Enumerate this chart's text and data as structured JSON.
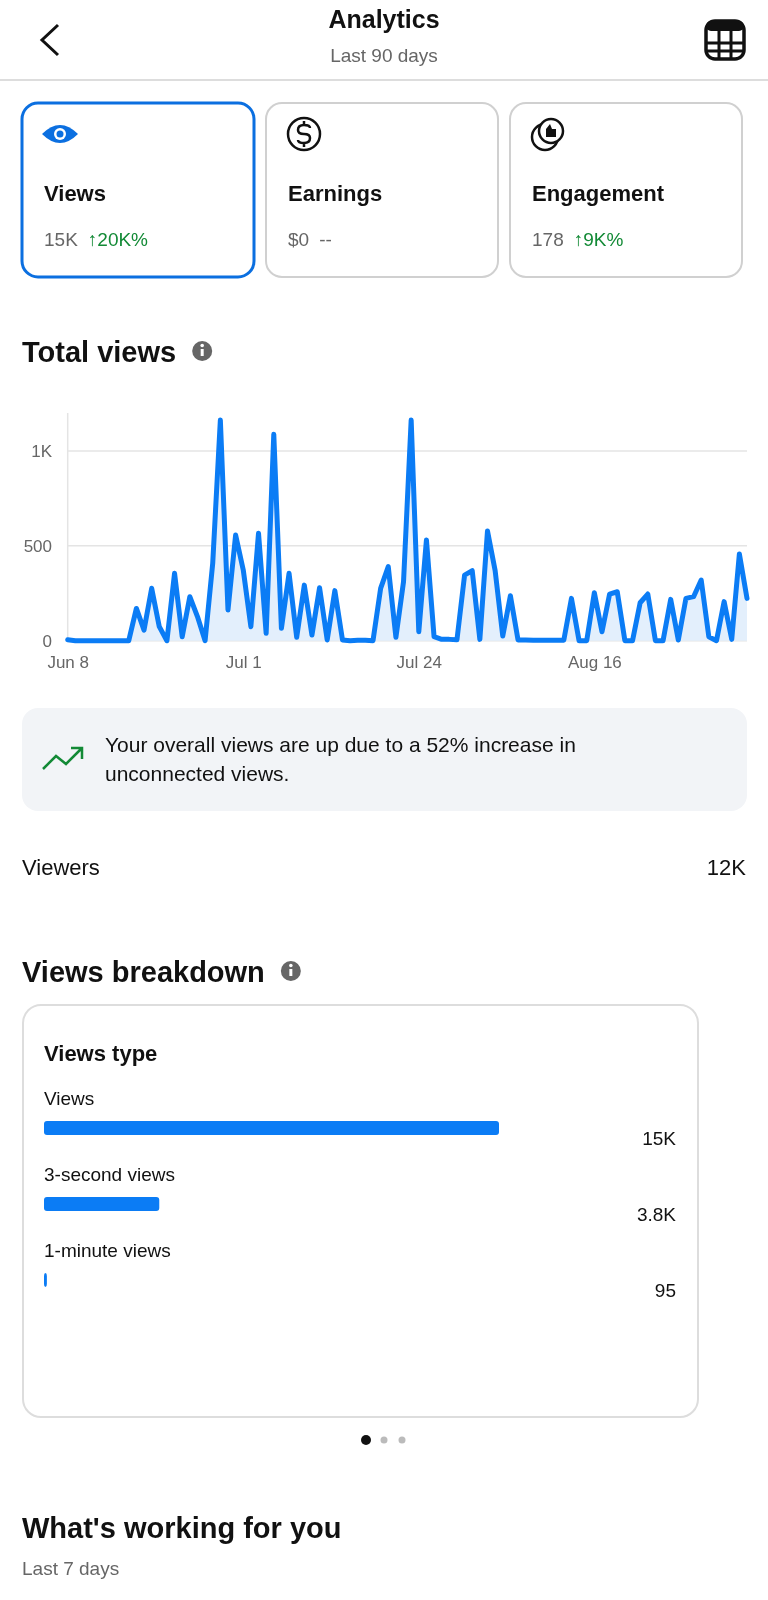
{
  "chart_data": [
    {
      "type": "other",
      "title": "Analytics",
      "subtitle": "Last 90 days",
      "annotations": [
        "Views",
        "15K",
        "↑20K%",
        "Earnings",
        "$0",
        "--",
        "Engagement",
        "178",
        "↑9K%"
      ]
    },
    {
      "type": "area",
      "title": "Total views",
      "color": "#0b7cf5",
      "x": [
        "--06-08",
        "--06-09",
        "--06-10",
        "--06-11",
        "--06-12",
        "--06-13",
        "--06-14",
        "--06-15",
        "--06-16",
        "--06-17",
        "--06-18",
        "--06-19",
        "--06-20",
        "--06-21",
        "--06-22",
        "--06-23",
        "--06-24",
        "--06-25",
        "--06-26",
        "--06-27",
        "--06-28",
        "--06-29",
        "--06-30",
        "--07-01",
        "--07-02",
        "--07-03",
        "--07-04",
        "--07-05",
        "--07-06",
        "--07-07",
        "--07-08",
        "--07-09",
        "--07-10",
        "--07-11",
        "--07-12",
        "--07-13",
        "--07-14",
        "--07-15",
        "--07-16",
        "--07-17",
        "--07-18",
        "--07-19",
        "--07-20",
        "--07-21",
        "--07-22",
        "--07-23",
        "--07-24",
        "--07-25",
        "--07-26",
        "--07-27",
        "--07-28",
        "--07-29",
        "--07-30",
        "--07-31",
        "--08-01",
        "--08-02",
        "--08-03",
        "--08-04",
        "--08-05",
        "--08-06",
        "--08-07",
        "--08-08",
        "--08-09",
        "--08-10",
        "--08-11",
        "--08-12",
        "--08-13",
        "--08-14",
        "--08-15",
        "--08-16",
        "--08-17",
        "--08-18",
        "--08-19",
        "--08-20",
        "--08-21",
        "--08-22",
        "--08-23",
        "--08-24",
        "--08-25",
        "--08-26",
        "--08-27",
        "--08-28",
        "--08-29",
        "--08-30",
        "--08-31",
        "--09-01",
        "--09-02",
        "--09-03",
        "--09-04",
        "--09-05"
      ],
      "values": [
        5,
        0,
        0,
        0,
        0,
        0,
        0,
        0,
        0,
        170,
        56,
        276,
        74,
        0,
        355,
        21,
        232,
        127,
        0,
        408,
        1163,
        162,
        557,
        373,
        74,
        566,
        39,
        1088,
        65,
        355,
        18,
        293,
        30,
        279,
        4,
        264,
        4,
        0,
        2,
        2,
        0,
        276,
        390,
        18,
        311,
        1163,
        47,
        531,
        21,
        7,
        7,
        5,
        346,
        369,
        7,
        578,
        370,
        25,
        237,
        4,
        4,
        3,
        2,
        3,
        3,
        3,
        223,
        0,
        0,
        253,
        47,
        246,
        258,
        0,
        0,
        200,
        246,
        0,
        0,
        218,
        4,
        223,
        232,
        320,
        21,
        0,
        206,
        7,
        457,
        223
      ],
      "xlim": [
        "--06-08",
        "--09-05"
      ],
      "xticks": [
        {
          "value": "--06-08",
          "label": "Jun 8"
        },
        {
          "value": "--07-01",
          "label": "Jul 1"
        },
        {
          "value": "--07-24",
          "label": "Jul 24"
        },
        {
          "value": "--08-16",
          "label": "Aug 16"
        }
      ],
      "ylim": [
        0,
        1200
      ],
      "yticks": [
        0,
        500,
        {
          "value": 1000,
          "label": "1K"
        }
      ],
      "grid": "y",
      "annotations": [
        "Your overall views are up due to a 52% increase in unconnected views.",
        "Viewers",
        "12K"
      ]
    },
    {
      "type": "bar",
      "orientation": "horizontal",
      "title": "Views breakdown",
      "subtitle": "Views type",
      "categories": [
        "Views",
        "3-second views",
        "1-minute views"
      ],
      "values": [
        15000,
        3800,
        95
      ],
      "value_labels": [
        "15K",
        "3.8K",
        "95"
      ],
      "color": "#0b7cf5"
    },
    {
      "type": "other",
      "title": "What's working for you",
      "subtitle": "Last 7 days"
    }
  ]
}
